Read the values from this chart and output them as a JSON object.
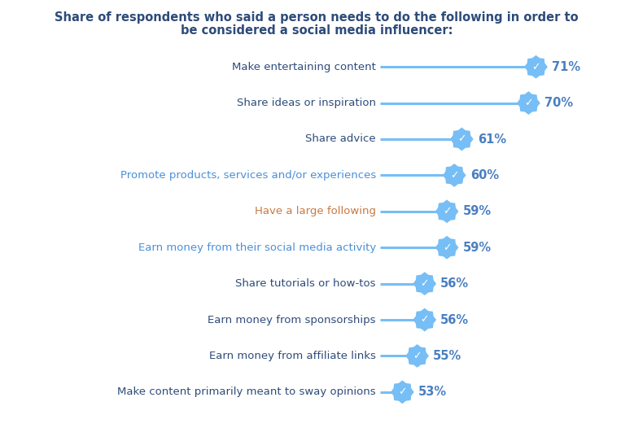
{
  "title_line1": "Share of respondents who said a person needs to do the following in order to",
  "title_line2": "be considered a social media influencer:",
  "categories": [
    "Make entertaining content",
    "Share ideas or inspiration",
    "Share advice",
    "Promote products, services and/or experiences",
    "Have a large following",
    "Earn money from their social media activity",
    "Share tutorials or how-tos",
    "Earn money from sponsorships",
    "Earn money from affiliate links",
    "Make content primarily meant to sway opinions"
  ],
  "values": [
    71,
    70,
    61,
    60,
    59,
    59,
    56,
    56,
    55,
    53
  ],
  "label_colors": [
    "#2e4b7a",
    "#2e4b7a",
    "#2e4b7a",
    "#4a90d9",
    "#c87941",
    "#4a90d9",
    "#2e4b7a",
    "#2e4b7a",
    "#2e4b7a",
    "#2e4b7a"
  ],
  "line_color": "#76bef5",
  "badge_color": "#76bef5",
  "pct_color": "#4a7fc1",
  "title_color": "#2e4b7a",
  "background_color": "#ffffff",
  "title_fontsize": 10.5,
  "label_fontsize": 9.5,
  "pct_fontsize": 10.5
}
